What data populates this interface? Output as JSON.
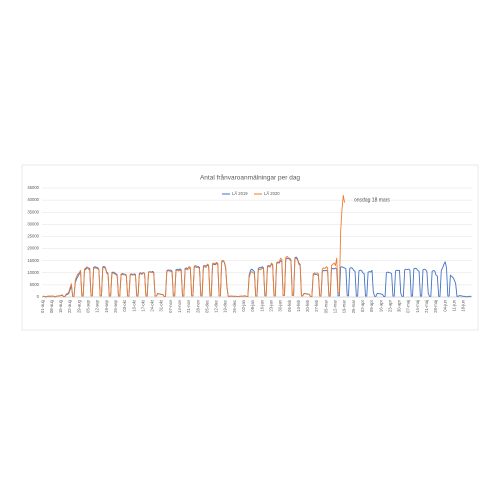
{
  "chart_data": {
    "type": "line",
    "title": "Antal frånvaroanmälningar per dag",
    "annotation": "onsdag 18 mars",
    "legend": "top",
    "grid": true,
    "ylim": [
      0,
      45000
    ],
    "yticks": [
      0,
      5000,
      10000,
      15000,
      20000,
      25000,
      30000,
      35000,
      40000,
      45000
    ],
    "categories": [
      "01-aug",
      null,
      null,
      null,
      null,
      null,
      null,
      "08-aug",
      null,
      null,
      null,
      null,
      null,
      null,
      "15-aug",
      null,
      null,
      null,
      null,
      null,
      null,
      "22-aug",
      null,
      null,
      null,
      null,
      null,
      null,
      "29-aug",
      null,
      null,
      null,
      null,
      null,
      null,
      "05-sep",
      null,
      null,
      null,
      null,
      null,
      null,
      "12-sep",
      null,
      null,
      null,
      null,
      null,
      null,
      "19-sep",
      null,
      null,
      null,
      null,
      null,
      null,
      "26-sep",
      null,
      null,
      null,
      null,
      null,
      null,
      "03-okt",
      null,
      null,
      null,
      null,
      null,
      null,
      "10-okt",
      null,
      null,
      null,
      null,
      null,
      null,
      "17-okt",
      null,
      null,
      null,
      null,
      null,
      null,
      "24-okt",
      null,
      null,
      null,
      null,
      null,
      null,
      "31-okt",
      null,
      null,
      null,
      null,
      null,
      null,
      "07-nov",
      null,
      null,
      null,
      null,
      null,
      null,
      "14-nov",
      null,
      null,
      null,
      null,
      null,
      null,
      "21-nov",
      null,
      null,
      null,
      null,
      null,
      null,
      "28-nov",
      null,
      null,
      null,
      null,
      null,
      null,
      "05-dec",
      null,
      null,
      null,
      null,
      null,
      null,
      "12-dec",
      null,
      null,
      null,
      null,
      null,
      null,
      "19-dec",
      null,
      null,
      null,
      null,
      null,
      null,
      "26-dec",
      null,
      null,
      null,
      null,
      null,
      null,
      "02-jan",
      null,
      null,
      null,
      null,
      null,
      null,
      "09-jan",
      null,
      null,
      null,
      null,
      null,
      null,
      "16-jan",
      null,
      null,
      null,
      null,
      null,
      null,
      "23-jan",
      null,
      null,
      null,
      null,
      null,
      null,
      "30-jan",
      null,
      null,
      null,
      null,
      null,
      null,
      "06-feb",
      null,
      null,
      null,
      null,
      null,
      null,
      "13-feb",
      null,
      null,
      null,
      null,
      null,
      null,
      "20-feb",
      null,
      null,
      null,
      null,
      null,
      null,
      "27-feb",
      null,
      null,
      null,
      null,
      null,
      null,
      "05-mar",
      null,
      null,
      null,
      null,
      null,
      null,
      "12-mar",
      null,
      null,
      null,
      null,
      null,
      null,
      "19-mar",
      null,
      null,
      null,
      null,
      null,
      null,
      "26-mar",
      null,
      null,
      null,
      null,
      null,
      null,
      "02-apr",
      null,
      null,
      null,
      null,
      null,
      null,
      "09-apr",
      null,
      null,
      null,
      null,
      null,
      null,
      "16-apr",
      null,
      null,
      null,
      null,
      null,
      null,
      "23-apr",
      null,
      null,
      null,
      null,
      null,
      null,
      "30-apr",
      null,
      null,
      null,
      null,
      null,
      null,
      "07-maj",
      null,
      null,
      null,
      null,
      null,
      null,
      "14-maj",
      null,
      null,
      null,
      null,
      null,
      null,
      "21-maj",
      null,
      null,
      null,
      null,
      null,
      null,
      "28-maj",
      null,
      null,
      null,
      null,
      null,
      null,
      "04-jun",
      null,
      null,
      null,
      null,
      null,
      null,
      "11-jun",
      null,
      null,
      null,
      null,
      null,
      null,
      "18-jun",
      null,
      null,
      null,
      null,
      null,
      null
    ],
    "series": [
      {
        "name": "LÅ 2019",
        "color": "#4472c4",
        "values": [
          300,
          280,
          100,
          100,
          320,
          310,
          300,
          350,
          400,
          120,
          100,
          420,
          450,
          480,
          600,
          700,
          150,
          150,
          900,
          1100,
          1500,
          3000,
          4500,
          300,
          300,
          6000,
          7500,
          8500,
          9500,
          10500,
          400,
          400,
          11000,
          11500,
          12000,
          12000,
          11800,
          500,
          500,
          12200,
          12500,
          12300,
          12100,
          11500,
          500,
          500,
          12400,
          12600,
          12200,
          10200,
          9800,
          400,
          400,
          10100,
          10300,
          10000,
          9600,
          9200,
          400,
          400,
          9400,
          9700,
          9500,
          9200,
          8800,
          400,
          400,
          9100,
          9300,
          9000,
          9600,
          9300,
          400,
          400,
          9800,
          10000,
          9700,
          10100,
          9800,
          400,
          400,
          10300,
          10500,
          10200,
          10600,
          10200,
          400,
          400,
          1500,
          1300,
          1200,
          1100,
          1000,
          200,
          200,
          10800,
          11200,
          11000,
          11100,
          10700,
          400,
          400,
          11300,
          11500,
          11200,
          11600,
          11200,
          400,
          400,
          11800,
          12000,
          11700,
          12100,
          11700,
          500,
          500,
          12300,
          12500,
          12200,
          12600,
          12200,
          500,
          500,
          12800,
          13000,
          12700,
          13100,
          12700,
          500,
          500,
          13300,
          13600,
          13300,
          13800,
          13400,
          500,
          500,
          14500,
          15000,
          14200,
          12000,
          4000,
          300,
          300,
          400,
          350,
          300,
          300,
          300,
          200,
          200,
          350,
          350,
          350,
          400,
          450,
          200,
          200,
          9000,
          11000,
          11500,
          11000,
          10500,
          400,
          400,
          11800,
          12200,
          12000,
          12500,
          12000,
          500,
          500,
          12800,
          13000,
          12700,
          13500,
          13000,
          500,
          500,
          13800,
          14200,
          14000,
          15000,
          14500,
          600,
          600,
          15500,
          16000,
          15800,
          16000,
          15200,
          600,
          600,
          16200,
          16500,
          15800,
          14000,
          13500,
          500,
          500,
          1500,
          1400,
          1300,
          1200,
          1100,
          200,
          200,
          9000,
          9500,
          9300,
          9200,
          8800,
          400,
          400,
          10500,
          11000,
          10800,
          11000,
          10600,
          400,
          400,
          11500,
          11800,
          11600,
          12000,
          11500,
          500,
          500,
          12300,
          12500,
          12200,
          12000,
          11600,
          500,
          500,
          11800,
          12100,
          11900,
          11000,
          10600,
          400,
          400,
          10800,
          11100,
          10900,
          10000,
          9600,
          400,
          400,
          10200,
          10500,
          10300,
          11000,
          2000,
          300,
          300,
          1500,
          1400,
          1300,
          1200,
          1100,
          200,
          200,
          10000,
          10300,
          10100,
          10000,
          9600,
          400,
          400,
          10800,
          11100,
          10900,
          11000,
          1500,
          300,
          300,
          11200,
          11500,
          11300,
          11500,
          11100,
          400,
          400,
          11600,
          11900,
          11700,
          11000,
          10600,
          400,
          400,
          11200,
          11500,
          11300,
          10500,
          1500,
          300,
          300,
          10600,
          10900,
          10700,
          9000,
          8600,
          300,
          300,
          11000,
          12000,
          13500,
          14500,
          12000,
          400,
          400,
          9000,
          8500,
          8000,
          7000,
          5500,
          300,
          300,
          600,
          500,
          400,
          300,
          300,
          100,
          100,
          300,
          300,
          300
        ]
      },
      {
        "name": "LÅ 2020",
        "color": "#ed7d31",
        "values": [
          300,
          300,
          120,
          120,
          350,
          330,
          320,
          380,
          420,
          130,
          120,
          450,
          480,
          500,
          700,
          900,
          200,
          200,
          1200,
          1500,
          2000,
          4000,
          5500,
          300,
          300,
          7000,
          8500,
          9500,
          10000,
          11000,
          400,
          400,
          11500,
          12000,
          12500,
          11500,
          11200,
          500,
          500,
          11800,
          12000,
          11900,
          11700,
          11300,
          500,
          500,
          12000,
          12200,
          11800,
          9800,
          9400,
          400,
          400,
          9700,
          9900,
          9600,
          9200,
          8900,
          400,
          400,
          9000,
          9300,
          9100,
          9500,
          9100,
          400,
          400,
          9400,
          9600,
          9300,
          9200,
          8900,
          400,
          400,
          9400,
          9600,
          9300,
          10000,
          9600,
          400,
          400,
          10200,
          10400,
          10100,
          10200,
          9800,
          400,
          400,
          1400,
          1200,
          1100,
          1000,
          900,
          200,
          200,
          10500,
          10900,
          10700,
          10600,
          10200,
          400,
          400,
          10800,
          11000,
          10700,
          11100,
          10700,
          400,
          400,
          11300,
          11500,
          11200,
          12600,
          12200,
          500,
          500,
          12800,
          13000,
          12700,
          12100,
          11700,
          500,
          500,
          12300,
          12500,
          12200,
          13600,
          13200,
          500,
          500,
          13800,
          14000,
          13700,
          14300,
          13900,
          500,
          500,
          14800,
          15200,
          14500,
          12500,
          4500,
          300,
          300,
          400,
          350,
          300,
          300,
          300,
          200,
          200,
          350,
          350,
          350,
          500,
          550,
          200,
          200,
          8000,
          10000,
          10500,
          10000,
          9600,
          400,
          400,
          11000,
          11500,
          11300,
          12000,
          11600,
          500,
          500,
          12300,
          12600,
          12300,
          14000,
          13500,
          500,
          500,
          14200,
          14500,
          14300,
          16000,
          15500,
          600,
          600,
          16300,
          16800,
          16200,
          15500,
          14800,
          600,
          600,
          15800,
          16000,
          15300,
          13500,
          13000,
          500,
          500,
          1400,
          1300,
          1200,
          1100,
          1000,
          200,
          200,
          9500,
          10000,
          9800,
          10000,
          9600,
          400,
          400,
          11500,
          12000,
          11800,
          12500,
          12000,
          500,
          500,
          13000,
          13500,
          14000,
          13000,
          16000,
          2000,
          1500,
          27000,
          36000,
          42000,
          39000,
          null,
          null,
          null,
          null,
          null,
          null,
          null,
          null,
          null,
          null,
          null,
          null,
          null,
          null,
          null,
          null,
          null,
          null,
          null,
          null,
          null,
          null,
          null,
          null,
          null,
          null,
          null,
          null,
          null,
          null,
          null,
          null,
          null,
          null,
          null,
          null,
          null,
          null,
          null,
          null,
          null,
          null,
          null,
          null,
          null,
          null,
          null,
          null,
          null,
          null,
          null,
          null,
          null,
          null,
          null,
          null,
          null,
          null,
          null,
          null,
          null,
          null,
          null,
          null,
          null,
          null,
          null,
          null,
          null,
          null,
          null,
          null,
          null,
          null,
          null,
          null,
          null,
          null,
          null,
          null,
          null,
          null,
          null,
          null,
          null,
          null,
          null,
          null,
          null,
          null,
          null,
          null,
          null,
          null,
          null,
          null,
          null
        ]
      }
    ]
  }
}
